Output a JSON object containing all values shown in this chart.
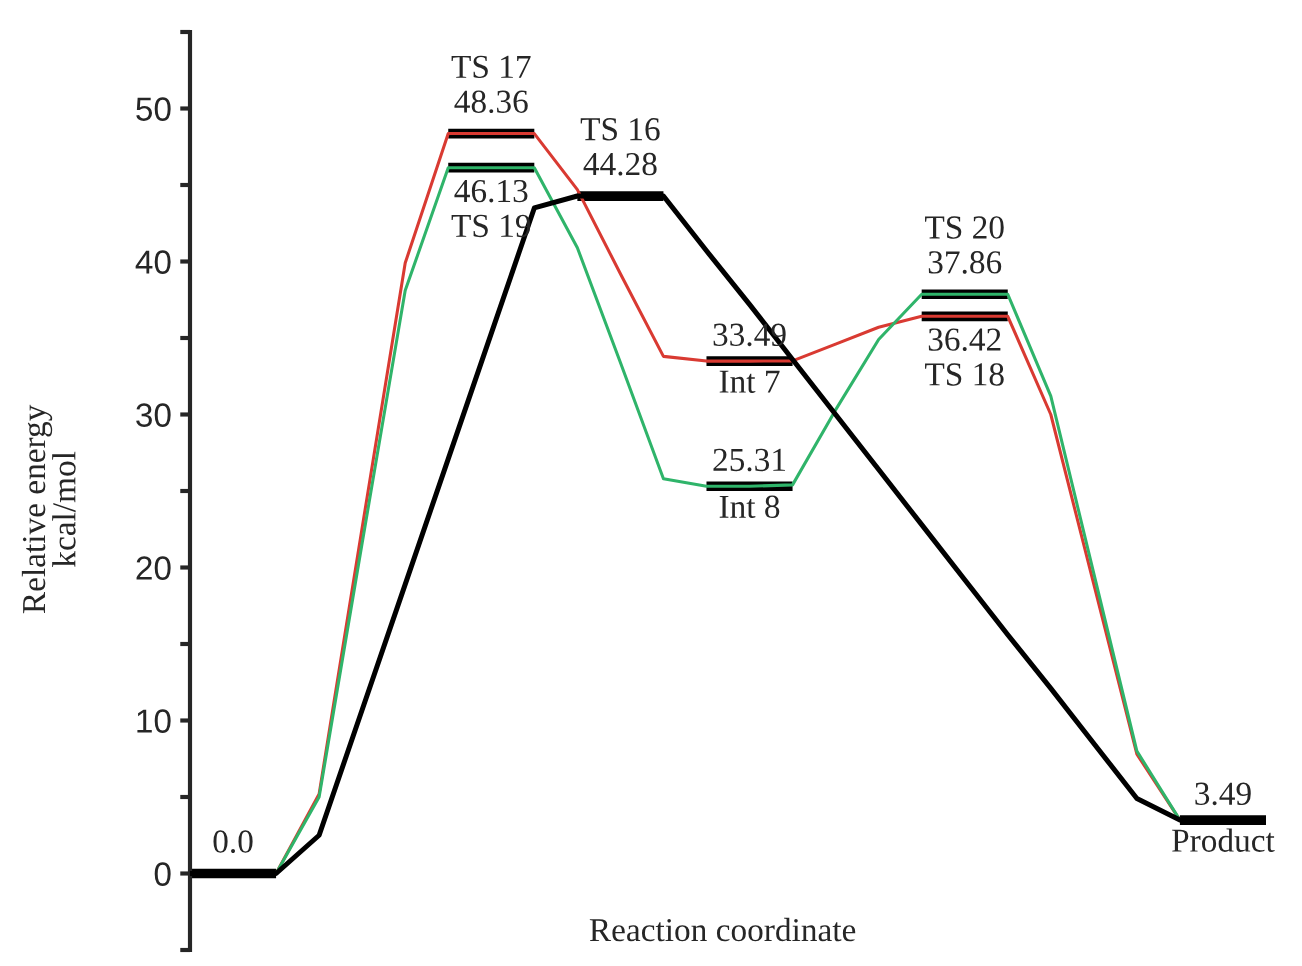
{
  "chart_data": {
    "type": "line",
    "xlabel": "Reaction coordinate",
    "ylabel": "Relative energy\nkcal/mol",
    "categories": [
      null,
      null,
      null,
      null,
      null,
      null,
      null,
      null,
      null,
      null,
      null,
      null,
      null,
      null,
      null,
      null,
      null,
      null,
      null,
      null,
      null,
      null,
      null,
      null,
      null,
      null
    ],
    "ylim": [
      -5,
      55
    ],
    "yticks": [
      {
        "value": -5,
        "label": null
      },
      0,
      {
        "value": 5,
        "label": null
      },
      10,
      {
        "value": 15,
        "label": null
      },
      20,
      {
        "value": 25,
        "label": null
      },
      30,
      {
        "value": 35,
        "label": null
      },
      40,
      {
        "value": 45,
        "label": null
      },
      50,
      {
        "value": 55,
        "label": null
      }
    ],
    "tick_labels": "y",
    "grid": false,
    "series": [
      {
        "color": "#000000",
        "values": [
          null,
          null,
          null,
          null,
          null,
          null,
          48.36,
          48.36,
          48.36,
          null,
          null,
          null,
          33.49,
          33.49,
          33.49,
          null,
          null,
          null,
          null,
          null,
          null,
          null,
          null,
          3.49,
          3.49,
          3.49
        ],
        "value_labels": [
          null,
          null,
          null,
          null,
          null,
          null,
          null,
          "TS 17\n48.36",
          null,
          null,
          null,
          null,
          null,
          "33.49\nInt 7",
          null,
          null,
          null,
          null,
          null,
          null,
          null,
          null,
          null,
          null,
          "3.49\nProduct",
          null
        ]
      },
      {
        "color": "#000000",
        "values": [
          0,
          0,
          0,
          null,
          null,
          null,
          46.13,
          46.13,
          46.13,
          null,
          null,
          null,
          null,
          null,
          null,
          null,
          null,
          36.42,
          36.42,
          36.42,
          null,
          null,
          null,
          null,
          null,
          null
        ],
        "value_labels": [
          null,
          "0.0",
          null,
          null,
          null,
          null,
          null,
          "46.13\nTS 19",
          null,
          null,
          null,
          null,
          null,
          null,
          null,
          null,
          null,
          null,
          "36.42\nTS 18",
          null,
          null,
          null,
          null,
          null,
          null,
          null
        ]
      },
      {
        "color": "#000000",
        "values": [
          null,
          null,
          null,
          null,
          null,
          null,
          null,
          null,
          null,
          44.28,
          44.28,
          44.28,
          null,
          null,
          null,
          null,
          null,
          37.86,
          37.86,
          37.86,
          null,
          null,
          null,
          null,
          null,
          null
        ],
        "value_labels": [
          null,
          null,
          null,
          null,
          null,
          null,
          null,
          null,
          null,
          null,
          "TS 16\n44.28",
          null,
          null,
          null,
          null,
          null,
          null,
          null,
          "TS 20\n37.86",
          null,
          null,
          null,
          null,
          null,
          null,
          null
        ]
      },
      {
        "color": "#000000",
        "values": [
          null,
          null,
          null,
          null,
          null,
          null,
          null,
          null,
          null,
          null,
          null,
          null,
          25.31,
          25.31,
          25.31,
          null,
          null,
          null,
          null,
          null,
          null,
          null,
          null,
          null,
          null,
          null
        ],
        "value_labels": [
          null,
          null,
          null,
          null,
          null,
          null,
          null,
          null,
          null,
          null,
          null,
          null,
          null,
          "25.31\nInt 8",
          null,
          null,
          null,
          null,
          null,
          null,
          null,
          null,
          null,
          null,
          null,
          null
        ]
      },
      {
        "color": "#d93a32",
        "values": [
          0,
          0,
          0,
          5.2,
          22.6,
          39.9,
          48.36,
          48.36,
          48.36,
          44.7,
          39.2,
          33.8,
          33.49,
          33.49,
          33.5,
          34.6,
          35.7,
          36.42,
          36.42,
          36.42,
          30.0,
          18.9,
          7.8,
          3.49,
          3.49,
          3.49
        ]
      },
      {
        "color": "#2fb46a",
        "values": [
          0,
          0,
          0,
          5.0,
          21.6,
          38.1,
          46.13,
          46.13,
          46.13,
          40.9,
          33.4,
          25.8,
          25.31,
          25.31,
          25.4,
          30.3,
          34.9,
          37.86,
          37.86,
          37.86,
          31.2,
          19.6,
          8.0,
          3.49,
          3.49,
          3.49
        ]
      },
      {
        "color": "#000000",
        "values": [
          0,
          0,
          0,
          2.5,
          10.7,
          18.9,
          27.1,
          35.3,
          43.5,
          44.28,
          44.28,
          44.28,
          40.7,
          37.2,
          33.6,
          30.0,
          26.4,
          22.8,
          19.2,
          15.6,
          12.1,
          8.5,
          4.9,
          3.49,
          3.49,
          3.49
        ]
      }
    ]
  }
}
